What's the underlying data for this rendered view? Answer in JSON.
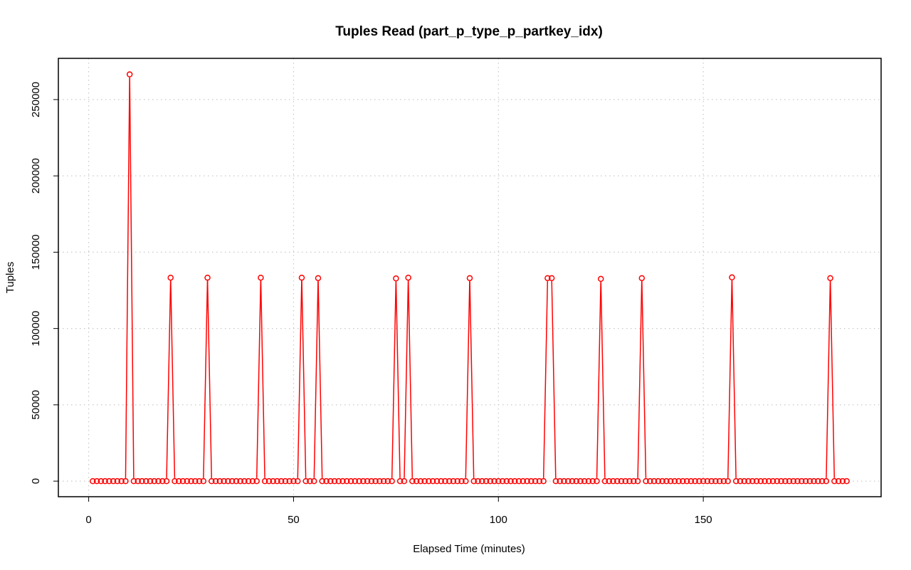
{
  "chart_data": {
    "type": "line",
    "title": "Tuples Read (part_p_type_p_partkey_idx)",
    "xlabel": "Elapsed Time (minutes)",
    "ylabel": "Tuples",
    "xlim": [
      -7.4,
      193.4
    ],
    "ylim": [
      -10200,
      277000
    ],
    "x_ticks": [
      0,
      50,
      100,
      150
    ],
    "y_ticks": [
      0,
      50000,
      100000,
      150000,
      200000,
      250000
    ],
    "x_tick_labels": [
      "0",
      "50",
      "100",
      "150"
    ],
    "y_tick_labels": [
      "0",
      "50000",
      "100000",
      "150000",
      "200000",
      "250000"
    ],
    "grid": true,
    "x": [
      1,
      185
    ],
    "series": [
      {
        "color": "#ff0000",
        "marker": "open-circle",
        "spikes": [
          [
            10,
            266500
          ],
          [
            20,
            133300
          ],
          [
            29,
            133300
          ],
          [
            42,
            133300
          ],
          [
            52,
            133300
          ],
          [
            56,
            133000
          ],
          [
            75,
            132800
          ],
          [
            78,
            133300
          ],
          [
            93,
            133000
          ],
          [
            112,
            133000
          ],
          [
            113,
            133000
          ],
          [
            125,
            132500
          ],
          [
            135,
            133000
          ],
          [
            157,
            133500
          ],
          [
            181,
            133000
          ]
        ],
        "baseline": 0
      }
    ]
  }
}
